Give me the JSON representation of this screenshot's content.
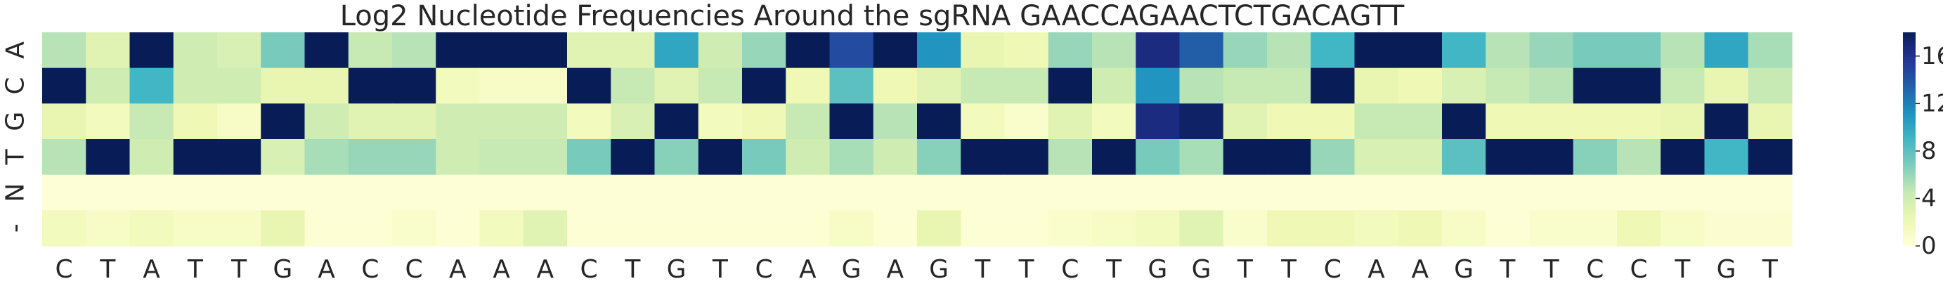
{
  "chart_data": {
    "type": "heatmap",
    "title": "Log2 Nucleotide Frequencies Around the sgRNA GAACCAGAACTCTGACAGTT",
    "xlabel": "",
    "ylabel": "",
    "x_tick_labels": [
      "C",
      "T",
      "A",
      "T",
      "T",
      "G",
      "A",
      "C",
      "C",
      "A",
      "A",
      "A",
      "C",
      "T",
      "G",
      "T",
      "C",
      "A",
      "G",
      "A",
      "G",
      "T",
      "T",
      "C",
      "T",
      "G",
      "G",
      "T",
      "T",
      "C",
      "A",
      "A",
      "G",
      "T",
      "T",
      "C",
      "C",
      "T",
      "G",
      "T"
    ],
    "y_tick_labels": [
      "A",
      "C",
      "G",
      "T",
      "N",
      "-"
    ],
    "values": [
      [
        5,
        3,
        18,
        4,
        3.5,
        7,
        18,
        4.5,
        5,
        18,
        18,
        18,
        3,
        3,
        10,
        4,
        6,
        18,
        14.5,
        18,
        11,
        2.5,
        2,
        6,
        5,
        16.5,
        13.5,
        6,
        5,
        9,
        18,
        18,
        9,
        5,
        6,
        7,
        7,
        5,
        10,
        5.5
      ],
      [
        18,
        4,
        9,
        4,
        4,
        2.5,
        2.5,
        18,
        18,
        1.5,
        1,
        1,
        18,
        4.5,
        3,
        4.5,
        18,
        2,
        8,
        2,
        3,
        4.5,
        4.5,
        18,
        4,
        11,
        5,
        4.5,
        4.5,
        18,
        2.5,
        2,
        3.5,
        4.5,
        5,
        18,
        18,
        4.5,
        2.5,
        4.5
      ],
      [
        2.5,
        1.5,
        4.5,
        2,
        1,
        18,
        4,
        3,
        3,
        4,
        4,
        4,
        1.5,
        3.5,
        18,
        1.5,
        2,
        4.5,
        18,
        5,
        18,
        1.5,
        0.8,
        3,
        1.5,
        16.5,
        17.5,
        3,
        2,
        2,
        4.5,
        4.5,
        18,
        2,
        2,
        2,
        2,
        2.5,
        18,
        2.5
      ],
      [
        5,
        18,
        4,
        18,
        18,
        3.5,
        5.5,
        6,
        6,
        4,
        4.5,
        4.5,
        7,
        18,
        6.5,
        18,
        7,
        4,
        5.5,
        4,
        6.5,
        18,
        18,
        5,
        18,
        7,
        5.5,
        18,
        18,
        6,
        3.5,
        3.5,
        8,
        18,
        18,
        6.5,
        5,
        18,
        9,
        18
      ],
      [
        0.2,
        0.2,
        0.2,
        0.2,
        0.2,
        0.2,
        0.2,
        0.2,
        0.2,
        0.2,
        0.2,
        0.2,
        0.2,
        0.2,
        0.2,
        0.2,
        0.2,
        0.2,
        0.2,
        0.2,
        0.2,
        0.2,
        0.2,
        0.2,
        0.2,
        0.2,
        0.2,
        0.2,
        0.2,
        0.2,
        0.2,
        0.2,
        0.2,
        0.2,
        0.2,
        0.2,
        0.2,
        0.2,
        0.2,
        0.2
      ],
      [
        1.5,
        1,
        1.5,
        1,
        1,
        2.5,
        0.3,
        0.3,
        0.8,
        0.3,
        1.5,
        3,
        0.3,
        0.3,
        0.3,
        0.3,
        0.3,
        0.3,
        1,
        0.3,
        2.5,
        0.3,
        0.3,
        0.8,
        1,
        1.5,
        3,
        0.8,
        2,
        2,
        1.5,
        2,
        1,
        0.3,
        0.8,
        0.8,
        2,
        1,
        0.5,
        0.5
      ]
    ],
    "vmin": 0,
    "vmax": 18,
    "colorbar_ticks": [
      0,
      4,
      8,
      12,
      16
    ],
    "colormap": "YlGnBu"
  }
}
